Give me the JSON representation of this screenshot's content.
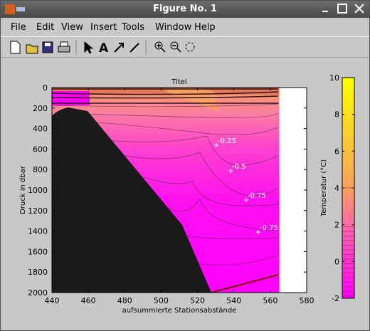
{
  "window": {
    "title": "Figure No. 1",
    "menu": [
      "File",
      "Edit",
      "View",
      "Insert",
      "Tools",
      "Window",
      "Help"
    ]
  },
  "chart_data": {
    "type": "contour",
    "title": "Titel",
    "xlabel": "aufsummierte Stationsabstände",
    "ylabel": "Druck in dbar",
    "xlim": [
      440,
      580
    ],
    "xticks": [
      440,
      460,
      480,
      500,
      520,
      540,
      560,
      580
    ],
    "ylim": [
      0,
      2000
    ],
    "y_reversed": true,
    "yticks": [
      0,
      200,
      400,
      600,
      800,
      1000,
      1200,
      1400,
      1600,
      1800,
      2000
    ],
    "colorbar_label": "Temperatur (°C)",
    "clim": [
      -2,
      10
    ],
    "cticks": [
      -2,
      0,
      2,
      4,
      6,
      8,
      10
    ],
    "contour_labels": [
      -0.25,
      -0.5,
      -0.75,
      -0.75
    ]
  }
}
